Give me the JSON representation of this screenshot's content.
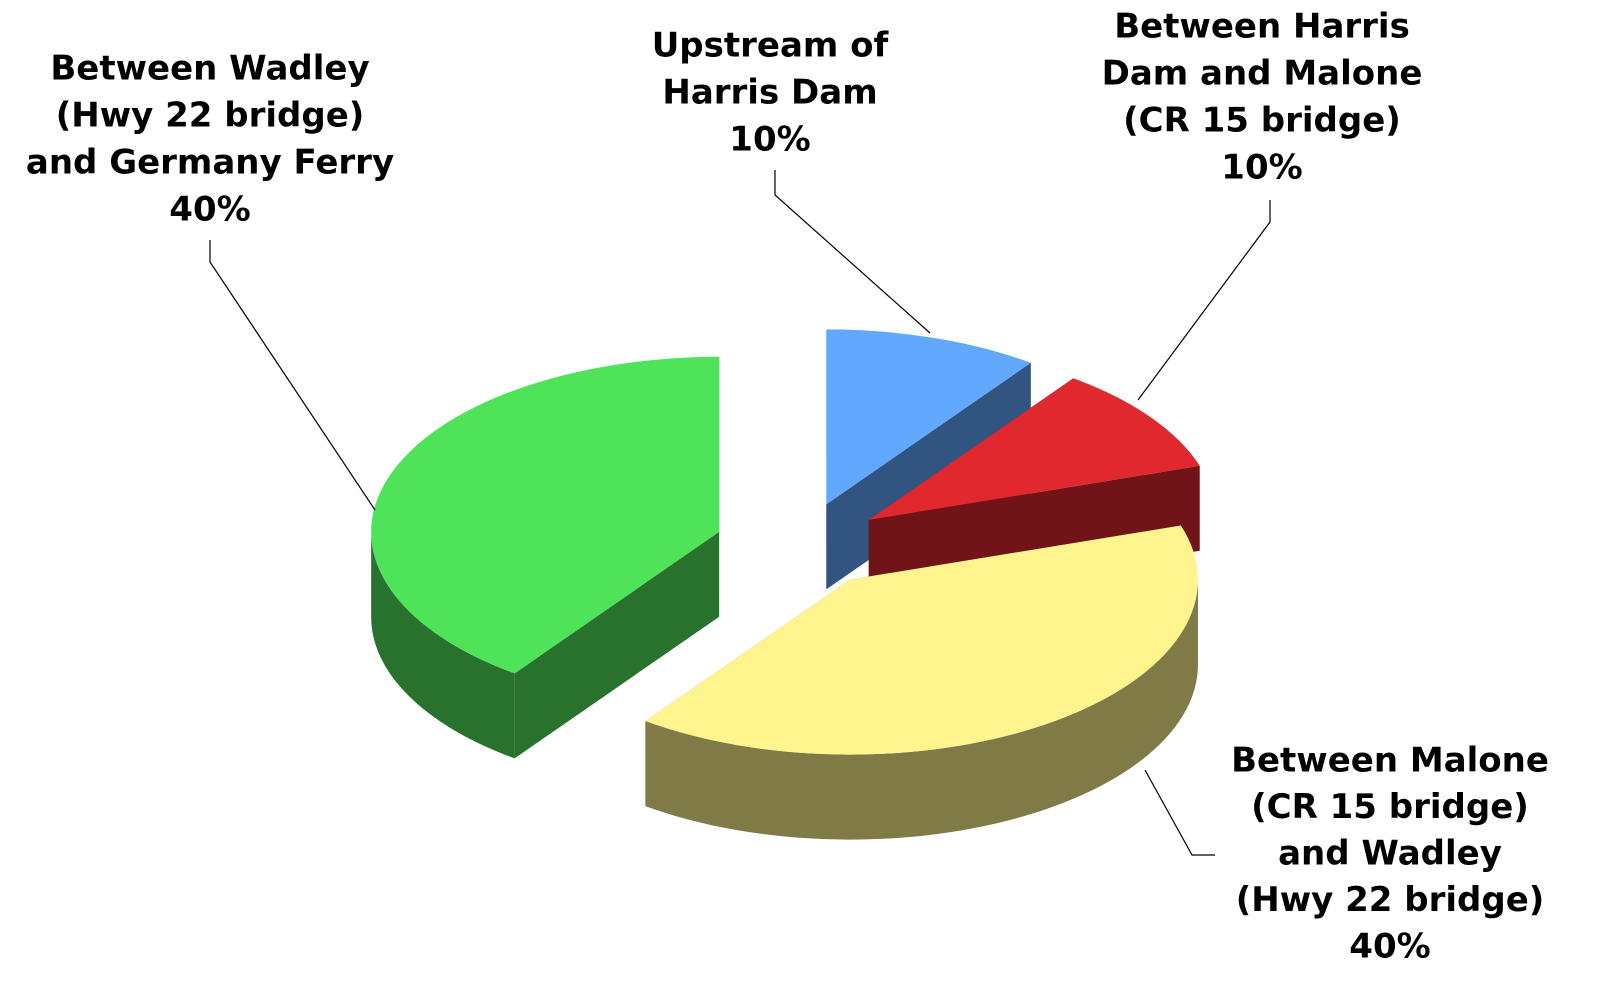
{
  "chart_data": {
    "type": "pie",
    "categories": [
      [
        "Upstream of",
        "Harris Dam"
      ],
      [
        "Between Harris",
        "Dam and Malone",
        "(CR 15 bridge)"
      ],
      [
        "Between Malone",
        "(CR 15 bridge)",
        "and Wadley",
        "(Hwy 22 bridge)"
      ],
      [
        "Between Wadley",
        "(Hwy 22 bridge)",
        "and Germany Ferry"
      ]
    ],
    "values": [
      10,
      10,
      40,
      40
    ],
    "value_labels": [
      "10%",
      "10%",
      "40%",
      "40%"
    ],
    "colors": [
      "#63a8ff",
      "#e0282e",
      "#fff48e",
      "#4fe35a"
    ]
  }
}
